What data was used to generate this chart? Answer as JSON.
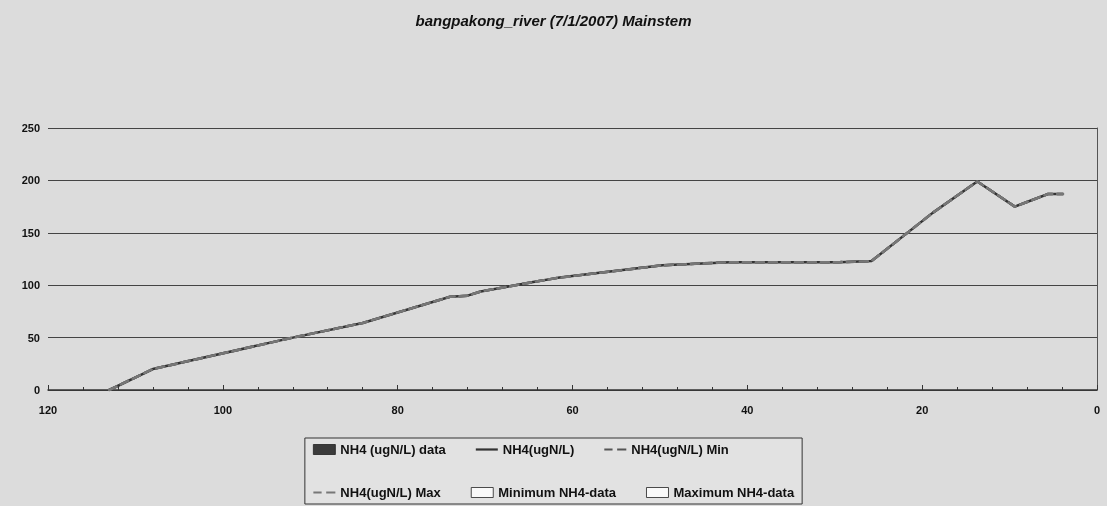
{
  "chart_data": {
    "type": "line",
    "title": "bangpakong_river (7/1/2007) Mainstem",
    "x": [
      113,
      108,
      92,
      84,
      74,
      72,
      70.5,
      64.5,
      61.7,
      49.7,
      42,
      29.5,
      25.8,
      18.8,
      13.7,
      9.4,
      5.6,
      3.9
    ],
    "series": [
      {
        "name": "NH4 (ugN/L) data",
        "type": "scatter",
        "marker": "square",
        "color": "#111111",
        "values": [
          null,
          null,
          null,
          null,
          null,
          null,
          null,
          null,
          null,
          null,
          null,
          null,
          null,
          null,
          null,
          null,
          null,
          null
        ]
      },
      {
        "name": "NH4(ugN/L)",
        "color": "#333333",
        "line_style": "solid",
        "values": [
          0,
          20,
          50,
          64,
          89,
          90,
          94,
          103,
          107,
          119,
          122,
          122,
          123,
          169,
          199,
          175,
          187,
          187
        ]
      },
      {
        "name": "NH4(ugN/L) Min",
        "color": "#555555",
        "line_style": "dashed",
        "values": [
          0,
          20,
          50,
          64,
          89,
          90,
          94,
          103,
          107,
          119,
          122,
          122,
          123,
          169,
          199,
          175,
          187,
          187
        ]
      },
      {
        "name": "NH4(ugN/L) Max",
        "color": "#777777",
        "line_style": "dashed",
        "values": [
          0,
          20,
          50,
          64,
          89,
          90,
          94,
          103,
          107,
          119,
          122,
          122,
          123,
          169,
          199,
          175,
          187,
          187
        ]
      },
      {
        "name": "Minimum NH4-data",
        "type": "scatter",
        "marker": "square",
        "color": "#ffffff",
        "values": [
          null,
          null,
          null,
          null,
          null,
          null,
          null,
          null,
          null,
          null,
          null,
          null,
          null,
          null,
          null,
          null,
          null,
          null
        ]
      },
      {
        "name": "Maximum NH4-data",
        "type": "scatter",
        "marker": "square",
        "color": "#ffffff",
        "values": [
          null,
          null,
          null,
          null,
          null,
          null,
          null,
          null,
          null,
          null,
          null,
          null,
          null,
          null,
          null,
          null,
          null,
          null
        ]
      }
    ],
    "marker": "none",
    "xlim": [
      120,
      0
    ],
    "xticks": [
      120,
      100,
      80,
      60,
      40,
      20,
      0
    ],
    "ylim": [
      0,
      250
    ],
    "yticks": [
      0,
      50,
      100,
      150,
      200,
      250
    ],
    "grid": "y",
    "legend": "bottom"
  }
}
